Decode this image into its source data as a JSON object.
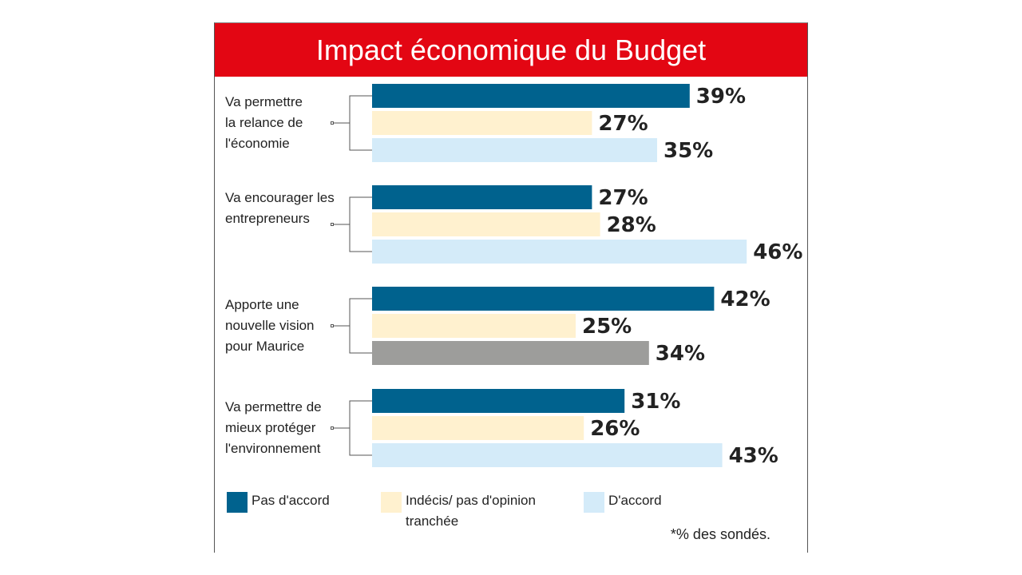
{
  "chart_data": {
    "type": "bar",
    "orientation": "horizontal",
    "title": "Impact économique du Budget",
    "unit": "%",
    "categories": [
      "Va permettre la relance de l'économie",
      "Va encourager les entrepreneurs",
      "Apporte une nouvelle vision pour Maurice",
      "Va permettre de mieux protéger l'environnement"
    ],
    "category_lines": [
      [
        "Va permettre",
        "la relance de",
        "l'économie"
      ],
      [
        "Va encourager les",
        "entrepreneurs"
      ],
      [
        "Apporte une",
        "nouvelle vision",
        "pour Maurice"
      ],
      [
        "Va permettre de",
        "mieux protéger",
        "l'environnement"
      ]
    ],
    "series": [
      {
        "name": "Pas d'accord",
        "color": "#00628e",
        "values": [
          39,
          27,
          42,
          31
        ]
      },
      {
        "name": "Indécis/ pas d'opinion tranchée",
        "color": "#fff1cf",
        "values": [
          27,
          28,
          25,
          26
        ]
      },
      {
        "name": "D'accord",
        "color": "#d4ebf9",
        "values": [
          35,
          46,
          34,
          43
        ]
      }
    ],
    "bar_color_overrides": [
      {
        "category": 2,
        "series": 2,
        "color": "#9d9d9b"
      }
    ],
    "data_labels": [
      [
        "39%",
        "27%",
        "35%"
      ],
      [
        "27%",
        "28%",
        "46%"
      ],
      [
        "42%",
        "25%",
        "34%"
      ],
      [
        "31%",
        "26%",
        "43%"
      ]
    ],
    "legend": {
      "placement": "bottom",
      "lines": [
        [
          "Pas d'accord"
        ],
        [
          "Indécis/ pas d'opinion",
          "tranchée"
        ],
        [
          "D'accord"
        ]
      ]
    },
    "footnote": "*% des sondés.",
    "grid": false,
    "axis_visible": false,
    "accent_color": "#e30613"
  }
}
